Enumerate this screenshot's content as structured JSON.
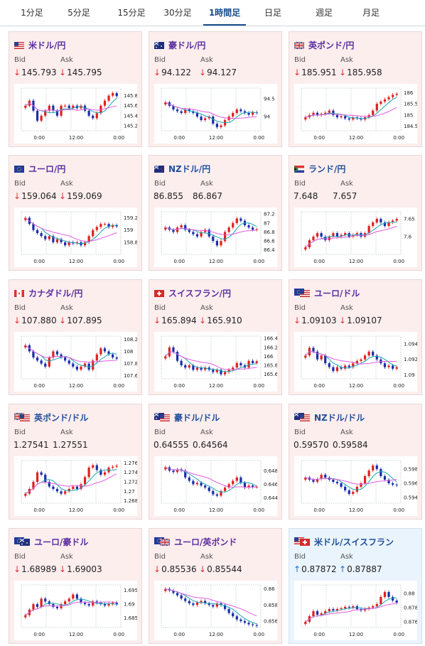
{
  "tabs": [
    {
      "label": "1分足",
      "active": false
    },
    {
      "label": "5分足",
      "active": false
    },
    {
      "label": "15分足",
      "active": false
    },
    {
      "label": "30分足",
      "active": false
    },
    {
      "label": "1時間足",
      "active": true
    },
    {
      "label": "日足",
      "active": false
    },
    {
      "label": "週足",
      "active": false
    },
    {
      "label": "月足",
      "active": false
    }
  ],
  "labels": {
    "bid": "Bid",
    "ask": "Ask"
  },
  "arrows": {
    "down": "↓",
    "up": "↑"
  },
  "colors": {
    "candle_up": "#e02020",
    "candle_down": "#1a2ea8",
    "ma_short": "#1aa6b5",
    "ma_long": "#e05ce0",
    "grid": "#9aa7b5",
    "down_bg": "#fdeeee",
    "up_bg": "#eaf4fc"
  },
  "cards": [
    {
      "name": "usd-jpy",
      "title": "米ドル/円",
      "flag": "us",
      "dir": "down",
      "bid": "145.793",
      "ask": "145.795",
      "yticks": [
        "145.8",
        "145.6",
        "145.4",
        "145.2"
      ],
      "xticks": [
        "0:00",
        "12:00",
        "0:00"
      ],
      "chart_data": {
        "type": "candlestick",
        "ylim": [
          145.1,
          145.95
        ],
        "closes": [
          145.6,
          145.7,
          145.5,
          145.3,
          145.4,
          145.5,
          145.6,
          145.5,
          145.4,
          145.6,
          145.6,
          145.55,
          145.6,
          145.55,
          145.6,
          145.5,
          145.4,
          145.35,
          145.45,
          145.6,
          145.7,
          145.8,
          145.85,
          145.79
        ]
      }
    },
    {
      "name": "aud-jpy",
      "title": "豪ドル/円",
      "flag": "au",
      "dir": "down",
      "bid": "94.122",
      "ask": "94.127",
      "yticks": [
        "94.5",
        "94"
      ],
      "xticks": [
        "0:00",
        "12:00",
        "0:00"
      ],
      "chart_data": {
        "type": "candlestick",
        "ylim": [
          93.6,
          94.8
        ],
        "closes": [
          94.4,
          94.3,
          94.2,
          94.15,
          94.1,
          94.2,
          94.15,
          94.1,
          94.0,
          93.9,
          93.95,
          94.0,
          93.8,
          93.7,
          93.75,
          93.9,
          94.0,
          94.1,
          94.2,
          94.15,
          94.1,
          94.05,
          94.12,
          94.1
        ]
      }
    },
    {
      "name": "gbp-jpy",
      "title": "英ポンド/円",
      "flag": "gb",
      "dir": "down",
      "bid": "185.951",
      "ask": "185.958",
      "yticks": [
        "186",
        "185.5",
        "185",
        "184.5"
      ],
      "xticks": [
        "0:00",
        "12:00",
        "0:00"
      ],
      "chart_data": {
        "type": "candlestick",
        "ylim": [
          184.3,
          186.2
        ],
        "closes": [
          184.9,
          185.0,
          185.1,
          185.0,
          185.05,
          185.1,
          185.2,
          185.0,
          184.9,
          184.95,
          184.85,
          184.8,
          184.9,
          184.85,
          184.8,
          184.9,
          185.0,
          185.2,
          185.5,
          185.6,
          185.7,
          185.8,
          185.9,
          185.95
        ]
      }
    },
    {
      "name": "eur-jpy",
      "title": "ユーロ/円",
      "flag": "eu",
      "dir": "down",
      "bid": "159.064",
      "ask": "159.069",
      "yticks": [
        "159.2",
        "159",
        "158.8"
      ],
      "xticks": [
        "0:00",
        "12:00",
        "0:00"
      ],
      "chart_data": {
        "type": "candlestick",
        "ylim": [
          158.6,
          159.3
        ],
        "closes": [
          159.2,
          159.1,
          159.0,
          158.95,
          158.9,
          158.85,
          158.9,
          158.8,
          158.85,
          158.8,
          158.75,
          158.8,
          158.78,
          158.8,
          158.75,
          158.8,
          158.9,
          159.0,
          159.05,
          159.1,
          159.1,
          159.05,
          159.08,
          159.06
        ]
      }
    },
    {
      "name": "nzd-jpy",
      "title": "NZドル/円",
      "flag": "nz",
      "dir": "none",
      "bid": "86.855",
      "ask": "86.867",
      "yticks": [
        "87.2",
        "87",
        "86.8",
        "86.6",
        "86.4"
      ],
      "xticks": [
        "0:00",
        "12:00",
        "0:00"
      ],
      "chart_data": {
        "type": "candlestick",
        "ylim": [
          86.3,
          87.25
        ],
        "closes": [
          86.9,
          86.85,
          86.8,
          86.9,
          86.95,
          86.85,
          86.8,
          86.75,
          86.7,
          86.8,
          86.85,
          86.7,
          86.6,
          86.5,
          86.6,
          86.8,
          86.9,
          87.0,
          87.1,
          87.05,
          86.95,
          86.9,
          86.85,
          86.86
        ]
      }
    },
    {
      "name": "zar-jpy",
      "title": "ランド/円",
      "flag": "za",
      "dir": "none",
      "bid": "7.648",
      "ask": "7.657",
      "yticks": [
        "7.65",
        "7.6"
      ],
      "xticks": [
        "0:00",
        "12:00",
        "0:00"
      ],
      "chart_data": {
        "type": "candlestick",
        "ylim": [
          7.55,
          7.67
        ],
        "closes": [
          7.57,
          7.59,
          7.6,
          7.61,
          7.6,
          7.59,
          7.6,
          7.61,
          7.6,
          7.605,
          7.61,
          7.6,
          7.605,
          7.61,
          7.6,
          7.61,
          7.63,
          7.64,
          7.65,
          7.64,
          7.63,
          7.64,
          7.645,
          7.65
        ]
      }
    },
    {
      "name": "cad-jpy",
      "title": "カナダドル/円",
      "flag": "ca",
      "dir": "down",
      "bid": "107.880",
      "ask": "107.895",
      "yticks": [
        "108.2",
        "108",
        "107.8",
        "107.6"
      ],
      "xticks": [
        "0:00",
        "12:00",
        "0:00"
      ],
      "chart_data": {
        "type": "candlestick",
        "ylim": [
          107.55,
          108.25
        ],
        "closes": [
          108.1,
          108.0,
          107.9,
          107.85,
          107.8,
          107.75,
          107.9,
          108.0,
          107.95,
          107.9,
          107.85,
          107.8,
          107.75,
          107.7,
          107.75,
          107.8,
          107.7,
          107.85,
          107.95,
          108.05,
          108.0,
          107.95,
          107.9,
          107.88
        ]
      }
    },
    {
      "name": "chf-jpy",
      "title": "スイスフラン/円",
      "flag": "ch",
      "dir": "down",
      "bid": "165.894",
      "ask": "165.910",
      "yticks": [
        "166.4",
        "166.2",
        "166",
        "165.8",
        "165.6"
      ],
      "xticks": [
        "0:00",
        "12:00",
        "0:00"
      ],
      "chart_data": {
        "type": "candlestick",
        "ylim": [
          165.5,
          166.45
        ],
        "closes": [
          166.0,
          166.2,
          166.1,
          165.9,
          165.8,
          165.75,
          165.8,
          165.7,
          165.75,
          165.7,
          165.75,
          165.7,
          165.65,
          165.7,
          165.6,
          165.65,
          165.7,
          165.75,
          165.85,
          165.8,
          165.75,
          165.9,
          165.85,
          165.89
        ]
      }
    },
    {
      "name": "eur-usd",
      "title": "ユーロ/ドル",
      "flag": "eu-us",
      "dir": "down",
      "bid": "1.09103",
      "ask": "1.09107",
      "yticks": [
        "1.094",
        "1.092",
        "1.09"
      ],
      "xticks": [
        "0:00",
        "12:00",
        "0:00"
      ],
      "chart_data": {
        "type": "candlestick",
        "ylim": [
          1.0895,
          1.095
        ],
        "closes": [
          1.0925,
          1.0935,
          1.093,
          1.092,
          1.0925,
          1.0915,
          1.091,
          1.0905,
          1.091,
          1.0908,
          1.0912,
          1.091,
          1.0915,
          1.0918,
          1.092,
          1.0925,
          1.093,
          1.0925,
          1.092,
          1.0915,
          1.091,
          1.0912,
          1.0908,
          1.091
        ]
      }
    },
    {
      "name": "gbp-usd",
      "title": "英ポンド/ドル",
      "flag": "gb-us",
      "dir": "none",
      "bid": "1.27541",
      "ask": "1.27551",
      "yticks": [
        "1.276",
        "1.274",
        "1.272",
        "1.27",
        "1.268"
      ],
      "xticks": [
        "0:00",
        "12:00",
        "0:00"
      ],
      "chart_data": {
        "type": "candlestick",
        "ylim": [
          1.2675,
          1.2765
        ],
        "closes": [
          1.2695,
          1.2705,
          1.272,
          1.274,
          1.2735,
          1.272,
          1.271,
          1.2705,
          1.27,
          1.2695,
          1.27,
          1.2705,
          1.271,
          1.2705,
          1.2715,
          1.273,
          1.275,
          1.2755,
          1.2745,
          1.2735,
          1.274,
          1.275,
          1.2752,
          1.2754
        ]
      }
    },
    {
      "name": "aud-usd",
      "title": "豪ドル/ドル",
      "flag": "au-us",
      "dir": "none",
      "bid": "0.64555",
      "ask": "0.64564",
      "yticks": [
        "0.648",
        "0.646",
        "0.644"
      ],
      "xticks": [
        "0:00",
        "12:00",
        "0:00"
      ],
      "chart_data": {
        "type": "candlestick",
        "ylim": [
          0.6432,
          0.6495
        ],
        "closes": [
          0.6485,
          0.648,
          0.6478,
          0.6482,
          0.648,
          0.647,
          0.6465,
          0.646,
          0.6462,
          0.6458,
          0.6455,
          0.645,
          0.6445,
          0.6443,
          0.645,
          0.6455,
          0.646,
          0.6465,
          0.647,
          0.6462,
          0.6455,
          0.6458,
          0.6456,
          0.6456
        ]
      }
    },
    {
      "name": "nzd-usd",
      "title": "NZドル/ドル",
      "flag": "nz-us",
      "dir": "none",
      "bid": "0.59570",
      "ask": "0.59584",
      "yticks": [
        "0.598",
        "0.596",
        "0.594"
      ],
      "xticks": [
        "0:00",
        "12:00",
        "0:00"
      ],
      "chart_data": {
        "type": "candlestick",
        "ylim": [
          0.5932,
          0.5992
        ],
        "closes": [
          0.5968,
          0.5965,
          0.5962,
          0.5966,
          0.5972,
          0.5968,
          0.5965,
          0.5962,
          0.596,
          0.5955,
          0.595,
          0.5945,
          0.5948,
          0.5955,
          0.596,
          0.597,
          0.5978,
          0.5985,
          0.598,
          0.597,
          0.5965,
          0.596,
          0.5958,
          0.5957
        ]
      }
    },
    {
      "name": "eur-aud",
      "title": "ユーロ/豪ドル",
      "flag": "eu-au",
      "dir": "down",
      "bid": "1.68989",
      "ask": "1.69003",
      "yticks": [
        "1.695",
        "1.69",
        "1.685"
      ],
      "xticks": [
        "0:00",
        "12:00",
        "0:00"
      ],
      "chart_data": {
        "type": "candlestick",
        "ylim": [
          1.6815,
          1.697
        ],
        "closes": [
          1.686,
          1.688,
          1.69,
          1.689,
          1.692,
          1.691,
          1.69,
          1.689,
          1.6885,
          1.69,
          1.691,
          1.692,
          1.6935,
          1.692,
          1.6905,
          1.69,
          1.6895,
          1.691,
          1.6905,
          1.69,
          1.6895,
          1.69,
          1.6905,
          1.6899
        ]
      }
    },
    {
      "name": "eur-gbp",
      "title": "ユーロ/英ポンド",
      "flag": "eu-gb",
      "dir": "down",
      "bid": "0.85536",
      "ask": "0.85544",
      "yticks": [
        "0.86",
        "0.858",
        "0.856"
      ],
      "xticks": [
        "0:00",
        "12:00",
        "0:00"
      ],
      "chart_data": {
        "type": "candlestick",
        "ylim": [
          0.8552,
          0.8605
        ],
        "closes": [
          0.86,
          0.8598,
          0.8595,
          0.8592,
          0.8588,
          0.8585,
          0.8582,
          0.858,
          0.8583,
          0.8585,
          0.8582,
          0.858,
          0.8578,
          0.8582,
          0.858,
          0.8575,
          0.857,
          0.8566,
          0.8562,
          0.856,
          0.8558,
          0.8556,
          0.8555,
          0.8554
        ]
      }
    },
    {
      "name": "usd-chf",
      "title": "米ドル/スイスフラン",
      "flag": "us-ch",
      "dir": "up",
      "bid": "0.87872",
      "ask": "0.87887",
      "yticks": [
        "0.88",
        "0.878",
        "0.876"
      ],
      "xticks": [
        "0:00",
        "12:00",
        "0:00"
      ],
      "chart_data": {
        "type": "candlestick",
        "ylim": [
          0.8752,
          0.8812
        ],
        "closes": [
          0.876,
          0.8768,
          0.8775,
          0.877,
          0.8772,
          0.8775,
          0.8778,
          0.8776,
          0.8778,
          0.8779,
          0.8781,
          0.878,
          0.8782,
          0.8778,
          0.8776,
          0.8778,
          0.878,
          0.8782,
          0.8785,
          0.8795,
          0.8802,
          0.8795,
          0.879,
          0.8787
        ]
      }
    }
  ]
}
